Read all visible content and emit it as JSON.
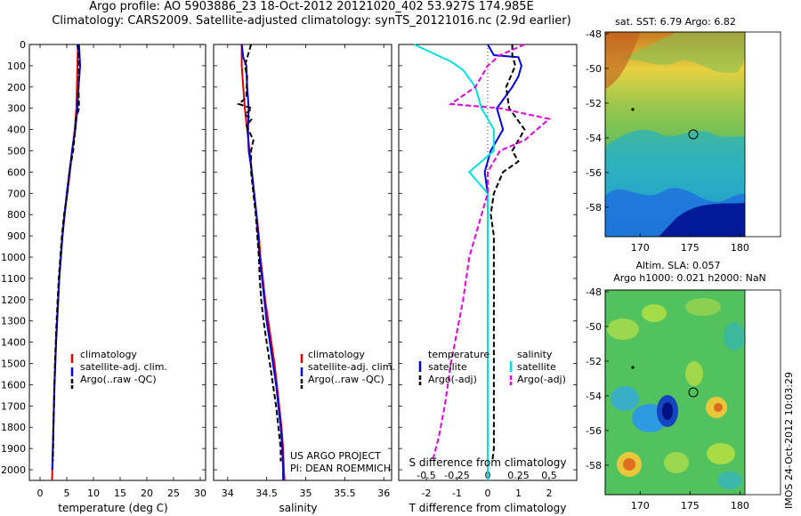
{
  "title": {
    "line1": "Argo profile: AO 5903886_23 18-Oct-2012 20121020_402 53.927S 174.985E",
    "line2": "Climatology: CARS2009. Satellite-adjusted climatology: synTS_20121016.nc (2.9d earlier)"
  },
  "colors": {
    "climatology": "#e00000",
    "satellite": "#0000e0",
    "argo": "#000000",
    "satellite_s": "#00e0e0",
    "argo_s": "#e000e0"
  },
  "chart_data": [
    {
      "type": "line",
      "id": "temperature",
      "xlabel": "temperature (deg C)",
      "x_ticks": [
        "0",
        "5",
        "10",
        "15",
        "20",
        "25",
        "30"
      ],
      "xlim": [
        -2,
        31
      ],
      "ylim": [
        2050,
        0
      ],
      "y_ticks": [
        "0",
        "100",
        "200",
        "300",
        "400",
        "500",
        "600",
        "700",
        "800",
        "900",
        "1000",
        "1100",
        "1200",
        "1300",
        "1400",
        "1500",
        "1600",
        "1700",
        "1800",
        "1900",
        "2000"
      ],
      "legend": [
        "climatology",
        "satellite-adj. clim.",
        "Argo(..raw -QC)"
      ],
      "series": [
        {
          "name": "climatology",
          "style": "solid",
          "color": "#e00000",
          "points": [
            [
              7.1,
              0
            ],
            [
              7.0,
              100
            ],
            [
              6.9,
              200
            ],
            [
              6.8,
              300
            ],
            [
              6.5,
              400
            ],
            [
              6.0,
              500
            ],
            [
              5.6,
              600
            ],
            [
              5.1,
              700
            ],
            [
              4.6,
              800
            ],
            [
              4.2,
              900
            ],
            [
              3.9,
              1000
            ],
            [
              3.6,
              1100
            ],
            [
              3.4,
              1200
            ],
            [
              3.2,
              1300
            ],
            [
              3.0,
              1400
            ],
            [
              2.85,
              1500
            ],
            [
              2.7,
              1600
            ],
            [
              2.6,
              1700
            ],
            [
              2.5,
              1800
            ],
            [
              2.4,
              1900
            ],
            [
              2.3,
              2000
            ],
            [
              2.25,
              2050
            ]
          ]
        },
        {
          "name": "satellite-adj. clim.",
          "style": "solid",
          "color": "#0000e0",
          "points": [
            [
              7.3,
              0
            ],
            [
              7.4,
              50
            ],
            [
              7.5,
              100
            ],
            [
              7.2,
              200
            ],
            [
              7.0,
              300
            ],
            [
              6.6,
              400
            ],
            [
              6.0,
              500
            ],
            [
              5.5,
              600
            ],
            [
              5.0,
              700
            ],
            [
              4.6,
              800
            ],
            [
              4.2,
              900
            ],
            [
              3.9,
              1000
            ],
            [
              3.6,
              1100
            ],
            [
              3.4,
              1200
            ],
            [
              3.2,
              1300
            ],
            [
              3.0,
              1400
            ],
            [
              2.85,
              1500
            ],
            [
              2.7,
              1600
            ],
            [
              2.6,
              1700
            ],
            [
              2.5,
              1800
            ],
            [
              2.4,
              1900
            ],
            [
              2.3,
              2000
            ]
          ]
        },
        {
          "name": "Argo(..raw -QC)",
          "style": "dashed",
          "color": "#000000",
          "points": [
            [
              7.0,
              0
            ],
            [
              7.2,
              50
            ],
            [
              7.3,
              100
            ],
            [
              7.2,
              200
            ],
            [
              7.3,
              300
            ],
            [
              6.7,
              350
            ],
            [
              6.6,
              400
            ],
            [
              6.2,
              500
            ],
            [
              5.5,
              600
            ],
            [
              5.1,
              700
            ],
            [
              4.5,
              800
            ],
            [
              4.1,
              900
            ],
            [
              3.8,
              1000
            ],
            [
              3.5,
              1100
            ],
            [
              3.3,
              1200
            ],
            [
              3.1,
              1300
            ],
            [
              2.95,
              1400
            ],
            [
              2.8,
              1500
            ],
            [
              2.7,
              1600
            ],
            [
              2.6,
              1700
            ],
            [
              2.5,
              1800
            ],
            [
              2.45,
              1900
            ],
            [
              2.4,
              1960
            ]
          ]
        }
      ]
    },
    {
      "type": "line",
      "id": "salinity",
      "xlabel": "salinity",
      "x_ticks": [
        "34",
        "34.5",
        "35",
        "35.5",
        "36"
      ],
      "xlim": [
        33.82,
        36.1
      ],
      "ylim": [
        2050,
        0
      ],
      "legend": [
        "climatology",
        "satellite-adj. clim.",
        "Argo(..raw -QC)"
      ],
      "annotation": [
        "US ARGO PROJECT",
        "PI: DEAN ROEMMICH"
      ],
      "series": [
        {
          "name": "climatology",
          "style": "solid",
          "color": "#e00000",
          "points": [
            [
              34.18,
              0
            ],
            [
              34.18,
              100
            ],
            [
              34.2,
              200
            ],
            [
              34.22,
              300
            ],
            [
              34.25,
              400
            ],
            [
              34.28,
              500
            ],
            [
              34.31,
              600
            ],
            [
              34.34,
              700
            ],
            [
              34.37,
              800
            ],
            [
              34.4,
              900
            ],
            [
              34.42,
              1000
            ],
            [
              34.45,
              1100
            ],
            [
              34.48,
              1200
            ],
            [
              34.52,
              1300
            ],
            [
              34.56,
              1400
            ],
            [
              34.6,
              1500
            ],
            [
              34.63,
              1600
            ],
            [
              34.66,
              1700
            ],
            [
              34.69,
              1800
            ],
            [
              34.71,
              1900
            ],
            [
              34.72,
              2000
            ],
            [
              34.73,
              2050
            ]
          ]
        },
        {
          "name": "satellite-adj. clim.",
          "style": "solid",
          "color": "#0000e0",
          "points": [
            [
              34.18,
              0
            ],
            [
              34.2,
              60
            ],
            [
              34.24,
              100
            ],
            [
              34.25,
              200
            ],
            [
              34.27,
              300
            ],
            [
              34.26,
              400
            ],
            [
              34.27,
              500
            ],
            [
              34.31,
              600
            ],
            [
              34.34,
              700
            ],
            [
              34.37,
              800
            ],
            [
              34.39,
              900
            ],
            [
              34.41,
              1000
            ],
            [
              34.44,
              1100
            ],
            [
              34.47,
              1200
            ],
            [
              34.5,
              1300
            ],
            [
              34.54,
              1400
            ],
            [
              34.58,
              1500
            ],
            [
              34.62,
              1600
            ],
            [
              34.65,
              1700
            ],
            [
              34.68,
              1800
            ],
            [
              34.7,
              1900
            ],
            [
              34.71,
              2000
            ],
            [
              34.71,
              2050
            ]
          ]
        },
        {
          "name": "Argo(..raw -QC)",
          "style": "dashed",
          "color": "#000000",
          "points": [
            [
              34.3,
              0
            ],
            [
              34.26,
              50
            ],
            [
              34.22,
              100
            ],
            [
              34.25,
              150
            ],
            [
              34.24,
              250
            ],
            [
              34.14,
              280
            ],
            [
              34.31,
              300
            ],
            [
              34.22,
              330
            ],
            [
              34.31,
              350
            ],
            [
              34.24,
              380
            ],
            [
              34.33,
              450
            ],
            [
              34.3,
              500
            ],
            [
              34.3,
              600
            ],
            [
              34.33,
              700
            ],
            [
              34.36,
              800
            ],
            [
              34.38,
              900
            ],
            [
              34.4,
              1000
            ],
            [
              34.41,
              1100
            ],
            [
              34.43,
              1200
            ],
            [
              34.46,
              1300
            ],
            [
              34.5,
              1400
            ],
            [
              34.54,
              1500
            ],
            [
              34.58,
              1600
            ],
            [
              34.62,
              1700
            ],
            [
              34.65,
              1800
            ],
            [
              34.68,
              1900
            ],
            [
              34.68,
              1960
            ]
          ]
        }
      ]
    },
    {
      "type": "line",
      "id": "difference",
      "xlabel_s": "S difference from climatology",
      "xlabel_t": "T difference from climatology",
      "x_ticks_s": [
        "-0.5",
        "-0.25",
        "0",
        "0.25",
        "0.5"
      ],
      "x_ticks_t": [
        "-2",
        "-1",
        "0",
        "1",
        "2"
      ],
      "xlim_t": [
        -2.9,
        2.9
      ],
      "legend_headers": [
        "temperature",
        "salinity"
      ],
      "legend": [
        "satellite",
        "Argo(-adj)",
        "satellite",
        "Argo(-adj)"
      ],
      "series": [
        {
          "name": "satellite",
          "group": "temperature",
          "style": "solid",
          "color": "#0000e0",
          "points": [
            [
              0.0,
              0
            ],
            [
              0.2,
              50
            ],
            [
              1.0,
              60
            ],
            [
              1.1,
              100
            ],
            [
              1.0,
              150
            ],
            [
              0.8,
              200
            ],
            [
              0.3,
              300
            ],
            [
              0.5,
              400
            ],
            [
              0.1,
              500
            ],
            [
              -0.1,
              600
            ],
            [
              0.0,
              700
            ],
            [
              0.0,
              900
            ],
            [
              0.0,
              1100
            ],
            [
              0.0,
              1400
            ],
            [
              0.0,
              1700
            ],
            [
              0.0,
              2000
            ],
            [
              0.0,
              2050
            ]
          ]
        },
        {
          "name": "Argo(-adj)",
          "group": "temperature",
          "style": "dashed",
          "color": "#000000",
          "points": [
            [
              0.8,
              0
            ],
            [
              0.8,
              50
            ],
            [
              0.9,
              100
            ],
            [
              0.6,
              200
            ],
            [
              0.7,
              300
            ],
            [
              1.2,
              400
            ],
            [
              0.8,
              500
            ],
            [
              1.0,
              550
            ],
            [
              0.5,
              600
            ],
            [
              0.2,
              700
            ],
            [
              0.1,
              800
            ],
            [
              0.2,
              900
            ],
            [
              0.2,
              1100
            ],
            [
              0.2,
              1400
            ],
            [
              0.2,
              1700
            ],
            [
              0.2,
              1900
            ],
            [
              0.15,
              1960
            ]
          ]
        },
        {
          "name": "satellite",
          "group": "salinity",
          "style": "solid",
          "color": "#00e0e0",
          "points": [
            [
              -0.6,
              0
            ],
            [
              -0.3,
              80
            ],
            [
              -0.2,
              120
            ],
            [
              -0.1,
              200
            ],
            [
              -0.05,
              300
            ],
            [
              0.05,
              400
            ],
            [
              0.05,
              500
            ],
            [
              -0.15,
              600
            ],
            [
              0.0,
              700
            ],
            [
              0.0,
              900
            ],
            [
              0.0,
              1200
            ],
            [
              0.0,
              1500
            ],
            [
              0.0,
              1800
            ],
            [
              0.0,
              2050
            ]
          ]
        },
        {
          "name": "Argo(-adj)",
          "group": "salinity",
          "style": "dashed",
          "color": "#e000e0",
          "points": [
            [
              0.3,
              0
            ],
            [
              0.1,
              50
            ],
            [
              0.0,
              100
            ],
            [
              -0.1,
              200
            ],
            [
              -0.3,
              280
            ],
            [
              0.1,
              300
            ],
            [
              0.5,
              350
            ],
            [
              0.4,
              400
            ],
            [
              0.3,
              450
            ],
            [
              0.1,
              500
            ],
            [
              0.0,
              600
            ],
            [
              0.0,
              700
            ],
            [
              -0.05,
              800
            ],
            [
              -0.1,
              900
            ],
            [
              -0.15,
              1000
            ],
            [
              -0.2,
              1200
            ],
            [
              -0.3,
              1500
            ],
            [
              -0.35,
              1700
            ],
            [
              -0.4,
              1850
            ],
            [
              -0.45,
              1960
            ]
          ]
        }
      ]
    },
    {
      "type": "heatmap",
      "id": "sst_map",
      "title": "sat. SST: 6.79  Argo: 6.82",
      "x_ticks": [
        "170",
        "175",
        "180"
      ],
      "y_ticks": [
        "-48",
        "-50",
        "-52",
        "-54",
        "-56",
        "-58"
      ],
      "xlim": [
        166.5,
        180.5
      ],
      "ylim": [
        -59.7,
        -47.9
      ],
      "float_marker": [
        174.985,
        -53.927
      ]
    },
    {
      "type": "heatmap",
      "id": "sla_map",
      "title_line1": "Altim. SLA: 0.057",
      "title_line2": "Argo h1000: 0.021  h2000: NaN",
      "x_ticks": [
        "170",
        "175",
        "180"
      ],
      "y_ticks": [
        "-48",
        "-50",
        "-52",
        "-54",
        "-56",
        "-58"
      ],
      "xlim": [
        166.5,
        180.5
      ],
      "ylim": [
        -59.7,
        -47.9
      ],
      "float_marker": [
        174.985,
        -53.927
      ]
    }
  ],
  "side_label": "IMOS 24-Oct-2012 10:03:29"
}
